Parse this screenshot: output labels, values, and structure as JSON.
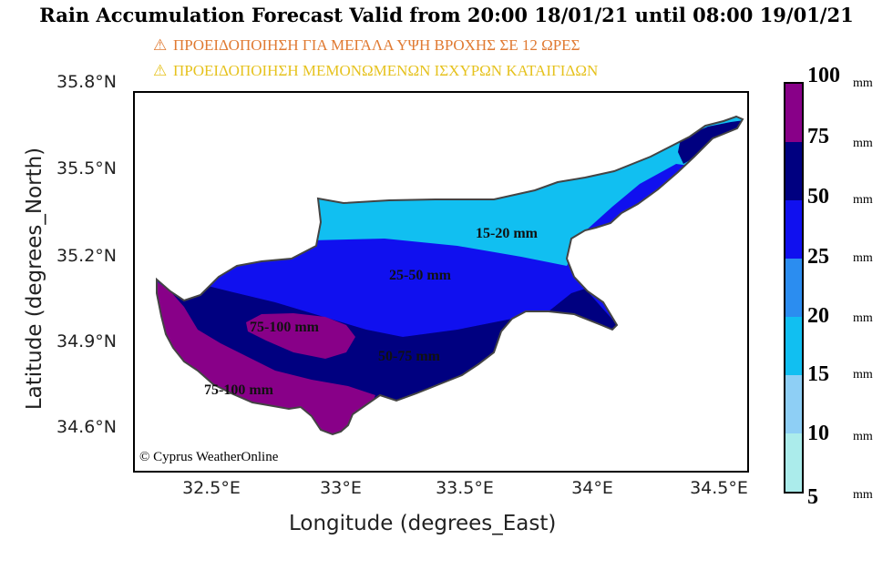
{
  "title": "Rain Accumulation Forecast Valid from 20:00 18/01/21 until 08:00 19/01/21",
  "warnings": [
    {
      "icon": "warning-triangle-icon",
      "text": "ΠΡΟΕΙΔΟΠΟΙΗΣΗ ΓΙΑ ΜΕΓΑΛΑ ΥΨΗ ΒΡΟΧΗΣ ΣΕ 12 ΩΡΕΣ",
      "color": "#e07a32"
    },
    {
      "icon": "warning-triangle-icon",
      "text": "ΠΡΟΕΙΔΟΠΟΙΗΣΗ ΜΕΜΟΝΩΜΕΝΩΝ ΙΣΧΥΡΩΝ ΚΑΤΑΙΓΙΔΩΝ",
      "color": "#e6c21e"
    }
  ],
  "axes": {
    "xlabel": "Longitude (degrees_East)",
    "ylabel": "Latitude (degrees_North)",
    "x_ticks": [
      "32.5°E",
      "33°E",
      "33.5°E",
      "34°E",
      "34.5°E"
    ],
    "y_ticks": [
      "35.8°N",
      "35.5°N",
      "35.2°N",
      "34.9°N",
      "34.6°N"
    ]
  },
  "zones": [
    {
      "label": "15-20 mm",
      "color": "#11bff1"
    },
    {
      "label": "25-50 mm",
      "color": "#1010ef"
    },
    {
      "label": "75-100 mm",
      "color": "#880088"
    },
    {
      "label": "50-75 mm",
      "color": "#000080"
    },
    {
      "label": "75-100 mm",
      "color": "#880088"
    }
  ],
  "copyright": "© Cyprus WeatherOnline",
  "legend": {
    "unit": "mm",
    "levels": [
      {
        "value": "100",
        "color": "#880088"
      },
      {
        "value": "75",
        "color": "#000080"
      },
      {
        "value": "50",
        "color": "#1010ef"
      },
      {
        "value": "25",
        "color": "#2b8df0"
      },
      {
        "value": "20",
        "color": "#11bff1"
      },
      {
        "value": "15",
        "color": "#8ecff5"
      },
      {
        "value": "10",
        "color": "#abeceb"
      },
      {
        "value": "5",
        "color": ""
      }
    ]
  }
}
